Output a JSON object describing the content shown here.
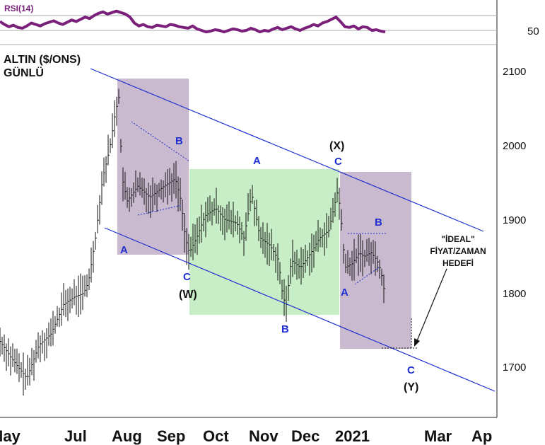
{
  "chart_data": {
    "type": "bar",
    "title": "ALTIN ($/ONS)",
    "subtitle": "GÜNLÜ",
    "indicator": {
      "label": "RSI(14)",
      "tick": "50",
      "values": [
        62,
        58,
        55,
        57,
        54,
        53,
        56,
        60,
        58,
        56,
        59,
        61,
        63,
        60,
        58,
        61,
        64,
        62,
        65,
        68,
        66,
        70,
        73,
        75,
        72,
        74,
        76,
        74,
        72,
        68,
        60,
        56,
        58,
        55,
        54,
        57,
        56,
        55,
        58,
        57,
        55,
        54,
        53,
        56,
        52,
        50,
        48,
        49,
        51,
        50,
        48,
        50,
        52,
        51,
        49,
        50,
        53,
        51,
        48,
        50,
        49,
        52,
        54,
        51,
        53,
        55,
        52,
        50,
        53,
        55,
        58,
        56,
        60,
        62,
        65,
        68,
        62,
        55,
        54,
        56,
        52,
        55,
        54,
        50,
        51,
        49,
        48
      ]
    },
    "y_ticks": [
      "2100",
      "2000",
      "1900",
      "1800",
      "1700"
    ],
    "ylim": [
      1645,
      2135
    ],
    "x_ticks": [
      "May",
      "Jul",
      "Aug",
      "Sep",
      "Oct",
      "Nov",
      "Dec",
      "2021",
      "Mar",
      "Ap"
    ],
    "wave_labels": [
      "A",
      "B",
      "C",
      "(W)",
      "A",
      "B",
      "C",
      "(X)",
      "A",
      "B",
      "C",
      "(Y)"
    ],
    "annotation": [
      "\"İDEAL\"",
      "FİYAT/ZAMAN",
      "HEDEFİ"
    ],
    "channel_color": "#1f2fd1",
    "zone_colors": {
      "purple": "#b8a3bf",
      "green": "#bdebbd"
    },
    "bar_color": "#111111",
    "rsi_color": "#7a1f7a"
  }
}
